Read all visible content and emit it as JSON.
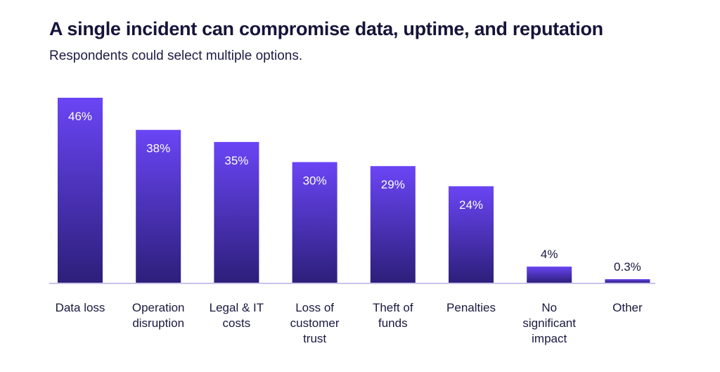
{
  "title": "A single incident can compromise data, uptime, and reputation",
  "subtitle": "Respondents could select multiple options.",
  "colors": {
    "bar_top": "#6a45f5",
    "bar_bottom": "#2d1f7a",
    "axis": "#c9c3ee",
    "label_inside": "#ffffff",
    "label_outside": "#1a1840"
  },
  "chart_data": {
    "type": "bar",
    "categories": [
      [
        "Data loss"
      ],
      [
        "Operation",
        "disruption"
      ],
      [
        "Legal & IT",
        "costs"
      ],
      [
        "Loss of",
        "customer",
        "trust"
      ],
      [
        "Theft of",
        "funds"
      ],
      [
        "Penalties"
      ],
      [
        "No",
        "significant",
        "impact"
      ],
      [
        "Other"
      ]
    ],
    "values": [
      46,
      38,
      35,
      30,
      29,
      24,
      4,
      0.3
    ],
    "value_labels": [
      "46%",
      "38%",
      "35%",
      "30%",
      "29%",
      "24%",
      "4%",
      "0.3%"
    ],
    "unit": "%",
    "ylim": [
      0,
      46
    ],
    "grid": false,
    "legend": "none"
  }
}
